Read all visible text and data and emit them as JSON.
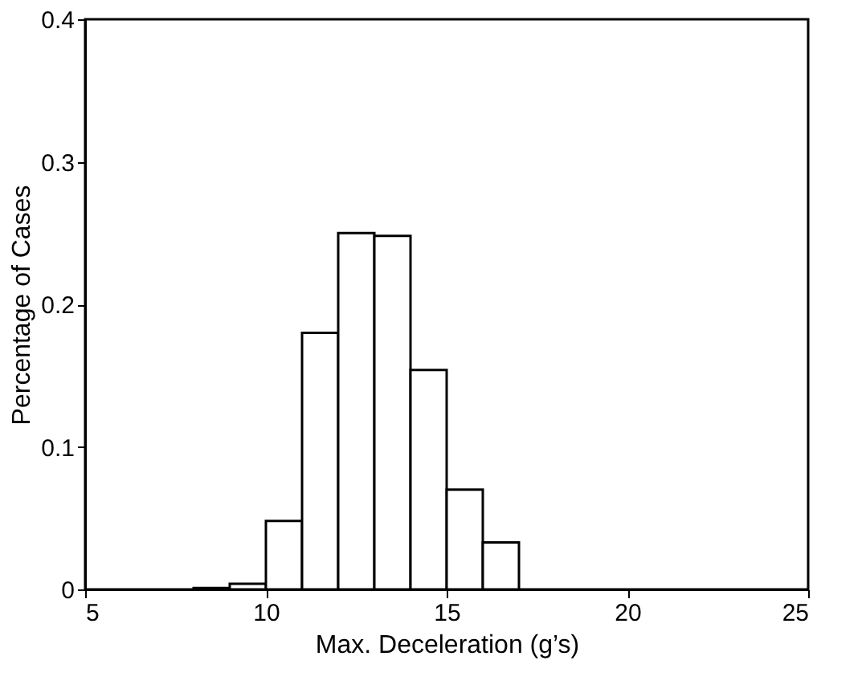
{
  "chart_data": {
    "type": "histogram",
    "xlabel": "Max. Deceleration (g’s)",
    "ylabel": "Percentage of Cases",
    "bins": [
      8,
      9,
      10,
      11,
      12,
      13,
      14,
      15,
      16,
      17
    ],
    "values": [
      0.001,
      0.004,
      0.048,
      0.18,
      0.25,
      0.248,
      0.154,
      0.07,
      0.033
    ],
    "color": "#ffffff",
    "xlim": [
      5,
      25
    ],
    "xticks": [
      5,
      10,
      15,
      20,
      25
    ],
    "ylim": [
      0,
      0.4
    ],
    "yticks": [
      {
        "value": 0,
        "label": "0"
      },
      0.1,
      0.2,
      0.3,
      0.4
    ],
    "grid": false
  }
}
